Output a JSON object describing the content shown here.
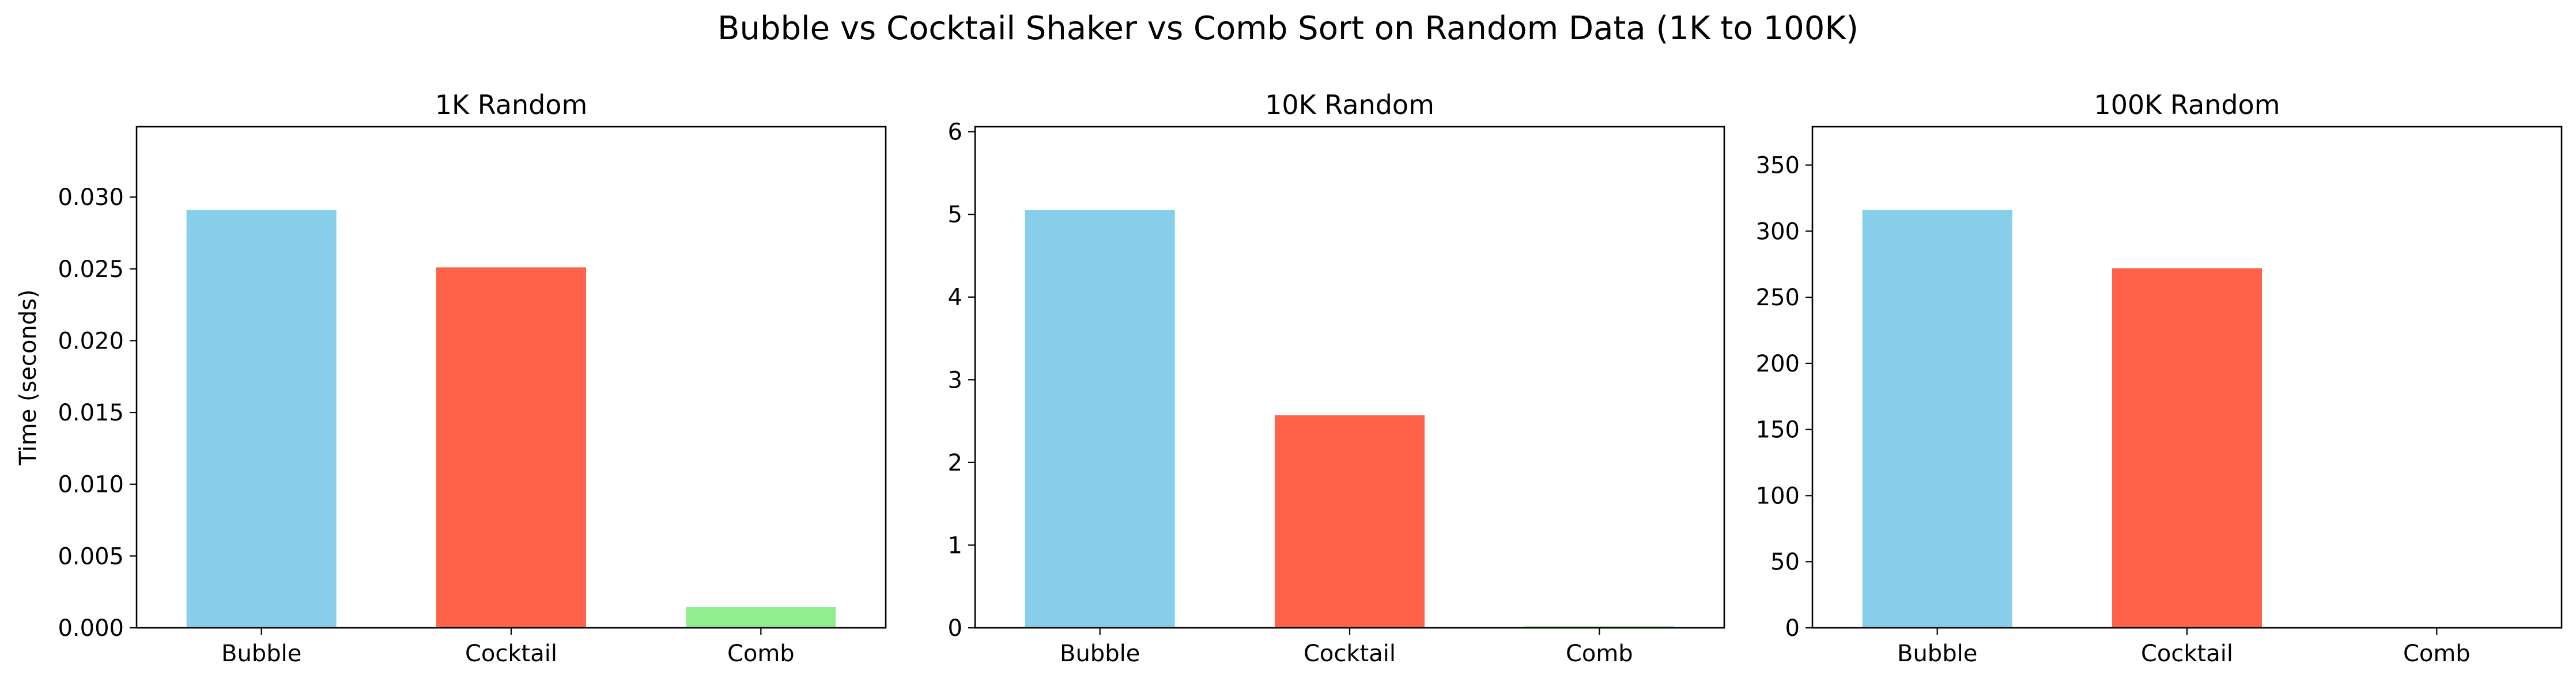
{
  "figure": {
    "suptitle": "Bubble vs Cocktail Shaker vs Comb Sort on Random Data (1K to 100K)"
  },
  "colors": {
    "Bubble": "#87CEEB",
    "Cocktail": "#FF6347",
    "Comb": "#90EE90"
  },
  "chart_data": [
    {
      "type": "bar",
      "title": "1K Random",
      "categories": [
        "Bubble",
        "Cocktail",
        "Comb"
      ],
      "values": [
        0.0291,
        0.0251,
        0.00145
      ],
      "xlabel": "",
      "ylabel": "Time (seconds)",
      "ylim": [
        0,
        0.0349
      ],
      "yticks": [
        0,
        0.005,
        0.01,
        0.015,
        0.02,
        0.025,
        0.03
      ],
      "ytick_labels": [
        "0.000",
        "0.005",
        "0.010",
        "0.015",
        "0.020",
        "0.025",
        "0.030"
      ],
      "grid": false
    },
    {
      "type": "bar",
      "title": "10K Random",
      "categories": [
        "Bubble",
        "Cocktail",
        "Comb"
      ],
      "values": [
        5.05,
        2.57,
        0.018
      ],
      "xlabel": "",
      "ylabel": "",
      "ylim": [
        0,
        6.06
      ],
      "yticks": [
        0,
        1,
        2,
        3,
        4,
        5,
        6
      ],
      "ytick_labels": [
        "0",
        "1",
        "2",
        "3",
        "4",
        "5",
        "6"
      ],
      "grid": false
    },
    {
      "type": "bar",
      "title": "100K Random",
      "categories": [
        "Bubble",
        "Cocktail",
        "Comb"
      ],
      "values": [
        316,
        272,
        0.25
      ],
      "xlabel": "",
      "ylabel": "",
      "ylim": [
        0,
        379
      ],
      "yticks": [
        0,
        50,
        100,
        150,
        200,
        250,
        300,
        350
      ],
      "ytick_labels": [
        "0",
        "50",
        "100",
        "150",
        "200",
        "250",
        "300",
        "350"
      ],
      "grid": false
    }
  ]
}
